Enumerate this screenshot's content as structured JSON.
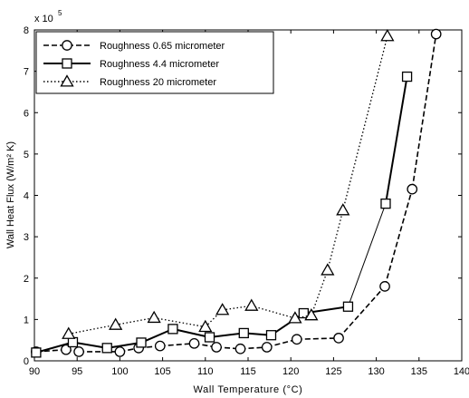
{
  "chart_data": {
    "type": "line",
    "xlabel": "Wall Temperature (°C)",
    "ylabel": "Wall Heat Flux (W/m² K)",
    "exponent_label": "x 10",
    "exponent_power": "5",
    "xlim": [
      90,
      140
    ],
    "ylim": [
      0,
      8
    ],
    "xticks": [
      "90",
      "95",
      "100",
      "105",
      "110",
      "115",
      "120",
      "125",
      "130",
      "135",
      "140"
    ],
    "yticks": [
      "0",
      "1",
      "2",
      "3",
      "4",
      "5",
      "6",
      "7",
      "8"
    ],
    "grid": false,
    "legend_position": "top-left",
    "series": [
      {
        "name": "Roughness 0.65 micrometer",
        "marker": "circle",
        "line_style": "dashed",
        "points": [
          [
            90.2,
            0.22
          ],
          [
            93.7,
            0.27
          ],
          [
            95.2,
            0.22
          ],
          [
            100.0,
            0.22
          ],
          [
            102.2,
            0.31
          ],
          [
            104.7,
            0.36
          ],
          [
            108.7,
            0.42
          ],
          [
            111.3,
            0.33
          ],
          [
            114.1,
            0.29
          ],
          [
            117.2,
            0.33
          ],
          [
            120.7,
            0.52
          ],
          [
            125.6,
            0.55
          ],
          [
            131.0,
            1.8
          ],
          [
            134.2,
            4.15
          ],
          [
            137.0,
            7.9
          ]
        ]
      },
      {
        "name": "Roughness 4.4 micrometer",
        "marker": "square",
        "line_style": "solid",
        "segment_widths": [
          2,
          1,
          2
        ],
        "segment_breaks": [
          126.7,
          131.1
        ],
        "points": [
          [
            90.2,
            0.2
          ],
          [
            94.5,
            0.45
          ],
          [
            98.5,
            0.31
          ],
          [
            102.5,
            0.44
          ],
          [
            106.2,
            0.77
          ],
          [
            110.5,
            0.57
          ],
          [
            114.5,
            0.67
          ],
          [
            117.7,
            0.62
          ],
          [
            121.5,
            1.15
          ],
          [
            126.7,
            1.31
          ],
          [
            131.1,
            3.8
          ],
          [
            133.6,
            6.87
          ]
        ]
      },
      {
        "name": "Roughness 20 micrometer",
        "marker": "triangle",
        "line_style": "dotted",
        "points": [
          [
            94.0,
            0.65
          ],
          [
            99.5,
            0.87
          ],
          [
            104.0,
            1.04
          ],
          [
            110.0,
            0.82
          ],
          [
            112.0,
            1.23
          ],
          [
            115.4,
            1.33
          ],
          [
            120.5,
            1.03
          ],
          [
            122.4,
            1.1
          ],
          [
            124.3,
            2.19
          ],
          [
            126.1,
            3.64
          ],
          [
            131.3,
            7.85
          ]
        ]
      }
    ]
  }
}
